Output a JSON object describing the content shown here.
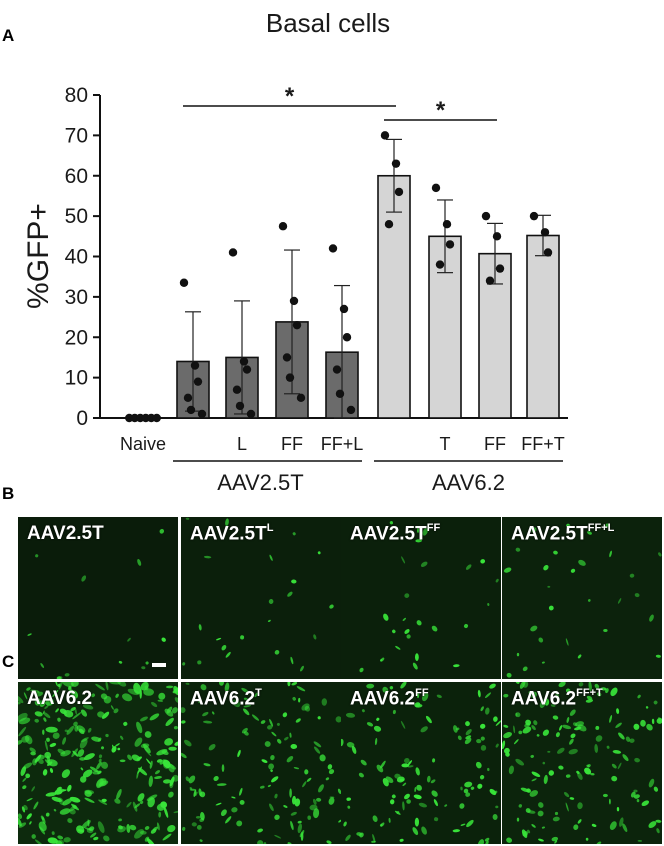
{
  "chart_data": {
    "type": "bar",
    "title": "Basal cells",
    "ylabel": "%GFP+",
    "ylim": [
      0,
      80
    ],
    "yticks": [
      0,
      10,
      20,
      30,
      40,
      50,
      60,
      70,
      80
    ],
    "categories": [
      "Naive",
      "",
      "L",
      "FF",
      "FF+L",
      "",
      "T",
      "FF",
      "FF+T"
    ],
    "groups": [
      {
        "label": "AAV2.5T",
        "categories": [
          1,
          2,
          3,
          4
        ]
      },
      {
        "label": "AAV6.2",
        "categories": [
          5,
          6,
          7,
          8
        ]
      }
    ],
    "bar_colors": [
      "#6b6b6b",
      "#6b6b6b",
      "#6b6b6b",
      "#6b6b6b",
      "#6b6b6b",
      "#d5d5d5",
      "#d5d5d5",
      "#d5d5d5",
      "#d5d5d5"
    ],
    "values": [
      0.2,
      14,
      15,
      23.8,
      16.3,
      60,
      45,
      40.7,
      45.2
    ],
    "error_bars": [
      0,
      12.3,
      14,
      17.8,
      16.5,
      9,
      9,
      7.5,
      5
    ],
    "points": [
      [
        0,
        0,
        0,
        0,
        0,
        0
      ],
      [
        33.5,
        13,
        9,
        5,
        2,
        1
      ],
      [
        41,
        14,
        12,
        7,
        3,
        1
      ],
      [
        47.5,
        29,
        23,
        15,
        10,
        5
      ],
      [
        42,
        27,
        20,
        12,
        6,
        2
      ],
      [
        70,
        63,
        56,
        48
      ],
      [
        57,
        48,
        43,
        38
      ],
      [
        50,
        45,
        37,
        34
      ],
      [
        50,
        46,
        41
      ]
    ],
    "significance": [
      {
        "from": 1,
        "to": 5,
        "label": "*"
      },
      {
        "from": 5,
        "to": 7,
        "label": "*"
      }
    ]
  },
  "panels": {
    "a": "A",
    "b": "B",
    "c": "C"
  },
  "row_b": [
    {
      "base": "AAV2.5T",
      "sup": ""
    },
    {
      "base": "AAV2.5T",
      "sup": "L"
    },
    {
      "base": "AAV2.5T",
      "sup": "FF"
    },
    {
      "base": "AAV2.5T",
      "sup": "FF+L"
    }
  ],
  "row_c": [
    {
      "base": "AAV6.2",
      "sup": ""
    },
    {
      "base": "AAV6.2",
      "sup": "T"
    },
    {
      "base": "AAV6.2",
      "sup": "FF"
    },
    {
      "base": "AAV6.2",
      "sup": "FF+T"
    }
  ],
  "colors": {
    "gfp": "#39e63a",
    "background": "#000000"
  }
}
